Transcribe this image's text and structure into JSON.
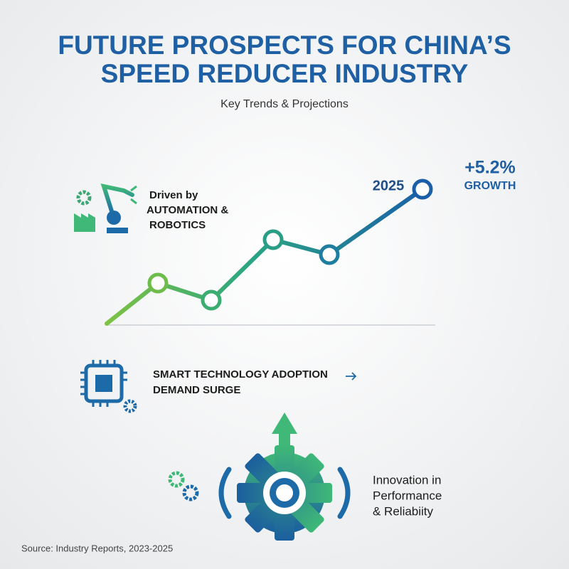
{
  "header": {
    "title_lines": [
      "FUTURE PROSPECTS FOR CHINA’S",
      "SPEED REDUCER INDUSTRY"
    ],
    "subtitle": "Key Trends & Projections"
  },
  "trend": {
    "year": "2025",
    "growth": "+5.2%",
    "growth_label": "GROWTH"
  },
  "drivers": [
    {
      "lines": [
        "Driven by",
        "AUTOMATION &",
        "ROBOTICS"
      ]
    },
    {
      "lines": [
        "SMART TECHNOLOGY ADOPTION",
        "DEMAND SURGE"
      ]
    },
    {
      "lines": [
        "Innovation in",
        "Performance",
        "& Reliabiity"
      ]
    }
  ],
  "source": "Source: Industry Reports, 2023-2025"
}
